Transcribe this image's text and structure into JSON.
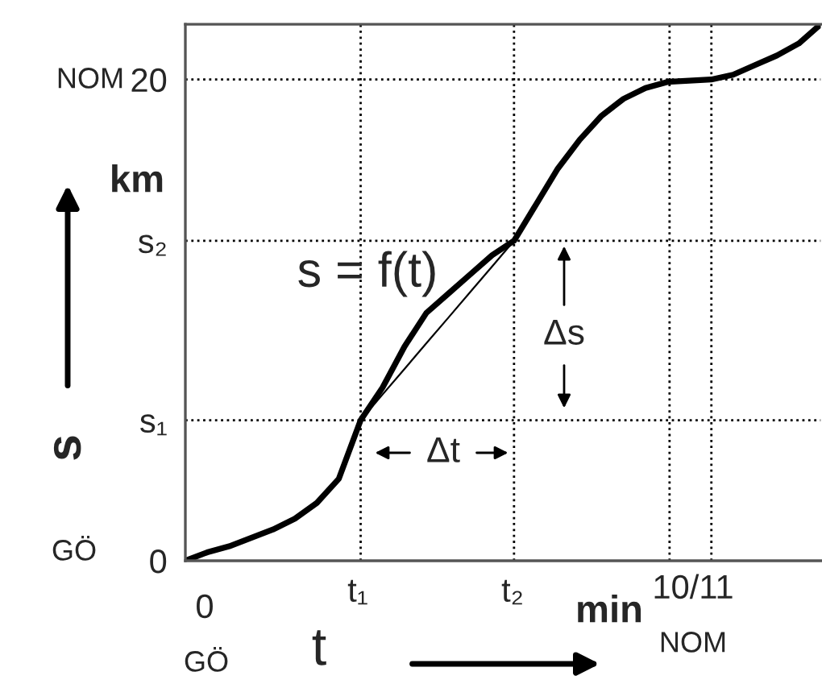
{
  "chart_data": {
    "type": "line",
    "xlabel": "t",
    "ylabel": "s",
    "categories": [
      null,
      null,
      null,
      null,
      null,
      null,
      null,
      null,
      null,
      null,
      null,
      null,
      null,
      null,
      null,
      null,
      null,
      null,
      null,
      null,
      null,
      null,
      null,
      null,
      null,
      null,
      null,
      null,
      null,
      null
    ],
    "series": [
      {
        "color": "#000000",
        "values": [
          0,
          0.35,
          0.6,
          0.95,
          1.3,
          1.75,
          2.4,
          3.4,
          5.84,
          7.2,
          8.9,
          10.3,
          11.1,
          11.9,
          12.7,
          13.3,
          14.8,
          16.3,
          17.5,
          18.5,
          19.2,
          19.65,
          19.9,
          19.95,
          20.0,
          20.2,
          20.6,
          21.0,
          21.5,
          22.3
        ]
      },
      {
        "color": "#000000",
        "values": [
          null,
          null,
          null,
          null,
          null,
          null,
          null,
          null,
          5.84,
          6.91,
          7.97,
          9.04,
          10.1,
          11.17,
          12.23,
          13.3,
          null,
          null,
          null,
          null,
          null,
          null,
          null,
          null,
          null,
          null,
          null,
          null,
          null,
          null
        ]
      }
    ],
    "ylim": [
      0,
      22.3
    ],
    "yticks": [
      0,
      {
        "value": 5.84,
        "label": "s₁"
      },
      {
        "value": 13.3,
        "label": "s₂"
      },
      20
    ],
    "ref_lines": [
      {
        "axis": "y",
        "value": 20,
        "color": "#000000",
        "line_style": "dotted"
      },
      {
        "axis": "y",
        "value": 13.3,
        "color": "#000000",
        "line_style": "dotted"
      },
      {
        "axis": "y",
        "value": 5.84,
        "color": "#000000",
        "line_style": "dotted"
      }
    ],
    "annotations": [
      "s = f(t)",
      "km",
      "min",
      "Δs",
      "Δt",
      "0",
      "t₁",
      "t₂",
      "10/11",
      "GÖ",
      "NOM",
      "GÖ",
      "NOM"
    ],
    "grid": "x",
    "legend": false,
    "marker": "none",
    "line_style": "solid"
  }
}
